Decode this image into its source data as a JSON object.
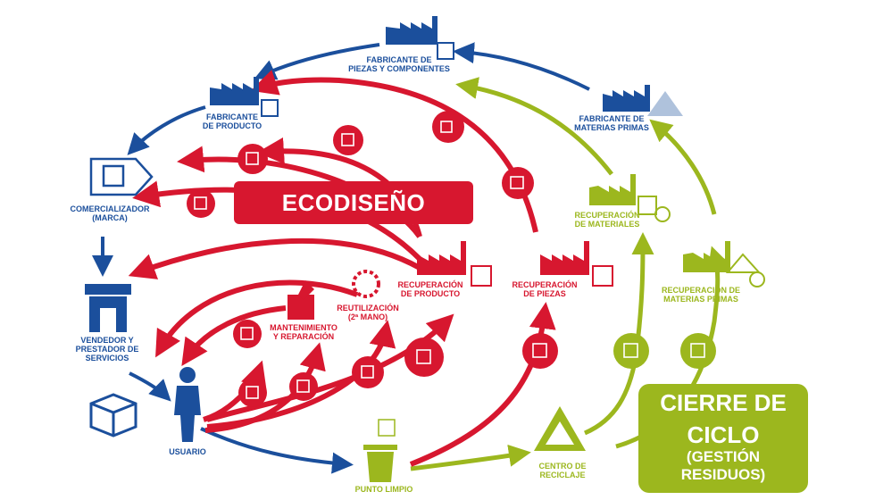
{
  "title": "ECODISEÑO",
  "colors": {
    "blue": "#1b4f9c",
    "red": "#d7172f",
    "green": "#9cb71e"
  },
  "nodes": {
    "fabricante_piezas": {
      "line1": "FABRICANTE DE",
      "line2": "PIEZAS Y COMPONENTES"
    },
    "fabricante_producto": {
      "line1": "FABRICANTE",
      "line2": "DE PRODUCTO"
    },
    "fabricante_materias": {
      "line1": "FABRICANTE DE",
      "line2": "MATERIAS PRIMAS"
    },
    "comercializador": {
      "line1": "COMERCIALIZADOR",
      "line2": "(MARCA)"
    },
    "vendedor": {
      "line1": "VENDEDOR Y",
      "line2": "PRESTADOR DE",
      "line3": "SERVICIOS"
    },
    "usuario": {
      "line1": "USUARIO"
    },
    "punto_limpio": {
      "line1": "PUNTO LIMPIO"
    },
    "centro_reciclaje": {
      "line1": "CENTRO DE",
      "line2": "RECICLAJE"
    },
    "mantenimiento": {
      "line1": "MANTENIMIENTO",
      "line2": "Y REPARACIÓN"
    },
    "reutilizacion": {
      "line1": "REUTILIZACIÓN",
      "line2": "(2ª MANO)"
    },
    "recuperacion_producto": {
      "line1": "RECUPERACIÓN",
      "line2": "DE PRODUCTO"
    },
    "recuperacion_piezas": {
      "line1": "RECUPERACIÓN",
      "line2": "DE PIEZAS"
    },
    "recuperacion_materiales": {
      "line1": "RECUPERACIÓN",
      "line2": "DE MATERIALES"
    },
    "recuperacion_materias": {
      "line1": "RECUPERACIÓN DE",
      "line2": "MATERIAS PRIMAS"
    }
  },
  "cierre": {
    "line1": "CIERRE DE",
    "line2": "CICLO",
    "line3": "(GESTIÓN",
    "line4": "RESIDUOS)"
  },
  "icons": [
    "factory-icon",
    "box-icon",
    "tag-icon",
    "store-icon",
    "person-icon",
    "trash-bin-icon",
    "recycle-icon",
    "wrench-icon",
    "refresh-icon",
    "magnifier-icon",
    "mountain-icon"
  ]
}
